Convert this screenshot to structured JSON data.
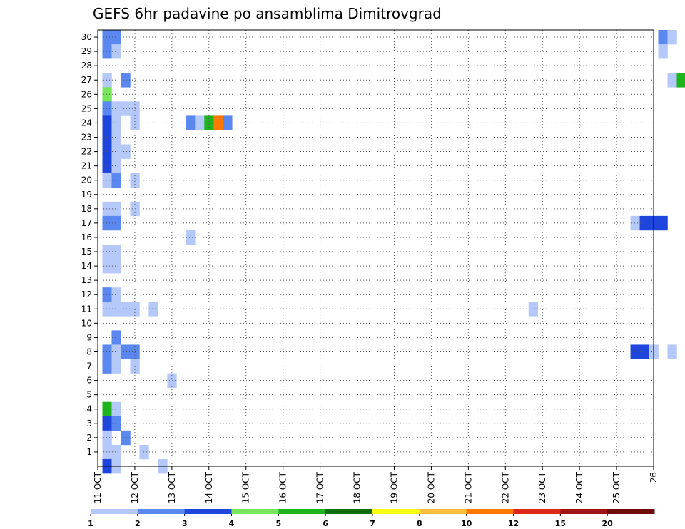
{
  "chart_data": {
    "type": "heatmap",
    "title": "GEFS 6hr padavine po ansamblima Dimitrovgrad",
    "xlabel": "",
    "ylabel": "",
    "x_tick_labels": [
      "11 OCT",
      "12 OCT",
      "13 OCT",
      "14 OCT",
      "15 OCT",
      "16 OCT",
      "17 OCT",
      "18 OCT",
      "19 OCT",
      "20 OCT",
      "21 OCT",
      "22 OCT",
      "23 OCT",
      "24 OCT",
      "25 OCT",
      "26"
    ],
    "x_range_days": [
      11,
      26
    ],
    "y_range": [
      0,
      30
    ],
    "y_tick_labels": [
      "1",
      "2",
      "3",
      "4",
      "5",
      "6",
      "7",
      "8",
      "9",
      "10",
      "11",
      "12",
      "13",
      "14",
      "15",
      "16",
      "17",
      "18",
      "19",
      "20",
      "21",
      "22",
      "23",
      "24",
      "25",
      "26",
      "27",
      "28",
      "29",
      "30"
    ],
    "grid": true,
    "time_step_hours": 6,
    "legend": {
      "placement": "bottom",
      "colors": [
        "#b4c8fa",
        "#5a87f0",
        "#1e46dc",
        "#78e65a",
        "#1eb41e",
        "#0a6e0a",
        "#ffff14",
        "#ffbe3c",
        "#ff7800",
        "#dc2814",
        "#a01414",
        "#6e0a0a"
      ],
      "labels": [
        "1",
        "2",
        "3",
        "4",
        "5",
        "6",
        "7",
        "8",
        "10",
        "12",
        "15",
        "20"
      ]
    },
    "category_colors": {
      "1": "#b4c8fa",
      "2": "#5a87f0",
      "3": "#1e46dc",
      "4": "#78e65a",
      "5": "#1eb41e",
      "6": "#0a6e0a",
      "8": "#ff7800"
    },
    "cells": [
      [
        0,
        30,
        2
      ],
      [
        1,
        30,
        2
      ],
      [
        0,
        29,
        2
      ],
      [
        1,
        29,
        1
      ],
      [
        0,
        27,
        1
      ],
      [
        2,
        27,
        2
      ],
      [
        0,
        26,
        4
      ],
      [
        0,
        25,
        2
      ],
      [
        1,
        25,
        1
      ],
      [
        2,
        25,
        1
      ],
      [
        3,
        25,
        1
      ],
      [
        0,
        24,
        3
      ],
      [
        1,
        24,
        1
      ],
      [
        3,
        24,
        1
      ],
      [
        0,
        23,
        3
      ],
      [
        1,
        23,
        1
      ],
      [
        0,
        22,
        3
      ],
      [
        1,
        22,
        1
      ],
      [
        2,
        22,
        1
      ],
      [
        0,
        21,
        3
      ],
      [
        1,
        21,
        1
      ],
      [
        0,
        20,
        1
      ],
      [
        1,
        20,
        2
      ],
      [
        3,
        20,
        1
      ],
      [
        0,
        18,
        1
      ],
      [
        1,
        18,
        1
      ],
      [
        3,
        18,
        1
      ],
      [
        0,
        17,
        2
      ],
      [
        1,
        17,
        2
      ],
      [
        0,
        15,
        1
      ],
      [
        1,
        15,
        1
      ],
      [
        0,
        14,
        1
      ],
      [
        1,
        14,
        1
      ],
      [
        0,
        12,
        2
      ],
      [
        1,
        12,
        1
      ],
      [
        0,
        11,
        1
      ],
      [
        1,
        11,
        1
      ],
      [
        2,
        11,
        1
      ],
      [
        3,
        11,
        1
      ],
      [
        1,
        9,
        2
      ],
      [
        0,
        8,
        2
      ],
      [
        1,
        8,
        1
      ],
      [
        2,
        8,
        2
      ],
      [
        3,
        8,
        2
      ],
      [
        0,
        7,
        2
      ],
      [
        1,
        7,
        1
      ],
      [
        3,
        7,
        1
      ],
      [
        0,
        4,
        5
      ],
      [
        1,
        4,
        1
      ],
      [
        0,
        3,
        3
      ],
      [
        1,
        3,
        2
      ],
      [
        0,
        2,
        1
      ],
      [
        2,
        2,
        2
      ],
      [
        0,
        1,
        1
      ],
      [
        1,
        1,
        1
      ],
      [
        0,
        0,
        3
      ],
      [
        1,
        0,
        1
      ],
      [
        4,
        1,
        1
      ],
      [
        5,
        11,
        1
      ],
      [
        7,
        6,
        1
      ],
      [
        6,
        0,
        1
      ],
      [
        9,
        16,
        1
      ],
      [
        9,
        24,
        2
      ],
      [
        10,
        24,
        1
      ],
      [
        11,
        24,
        5
      ],
      [
        12,
        24,
        8
      ],
      [
        13,
        24,
        2
      ],
      [
        46,
        11,
        1
      ],
      [
        57,
        17,
        1
      ],
      [
        58,
        17,
        3
      ],
      [
        59,
        17,
        3
      ],
      [
        60,
        17,
        3
      ],
      [
        57,
        8,
        3
      ],
      [
        58,
        8,
        3
      ],
      [
        59,
        8,
        1
      ],
      [
        61,
        8,
        1
      ],
      [
        60,
        30,
        2
      ],
      [
        61,
        30,
        1
      ],
      [
        60,
        29,
        1
      ],
      [
        61,
        27,
        1
      ],
      [
        62,
        27,
        5
      ],
      [
        63,
        27,
        2
      ],
      [
        64,
        29,
        2
      ],
      [
        65,
        29,
        2
      ],
      [
        64,
        5,
        1
      ],
      [
        66,
        8,
        6
      ],
      [
        67,
        8,
        1
      ],
      [
        68,
        8,
        6
      ],
      [
        69,
        8,
        8
      ],
      [
        70,
        8,
        4
      ],
      [
        71,
        8,
        5
      ],
      [
        72,
        8,
        1
      ],
      [
        71,
        6,
        1
      ],
      [
        72,
        10,
        3
      ],
      [
        73,
        10,
        8
      ],
      [
        73,
        29,
        4
      ]
    ]
  }
}
